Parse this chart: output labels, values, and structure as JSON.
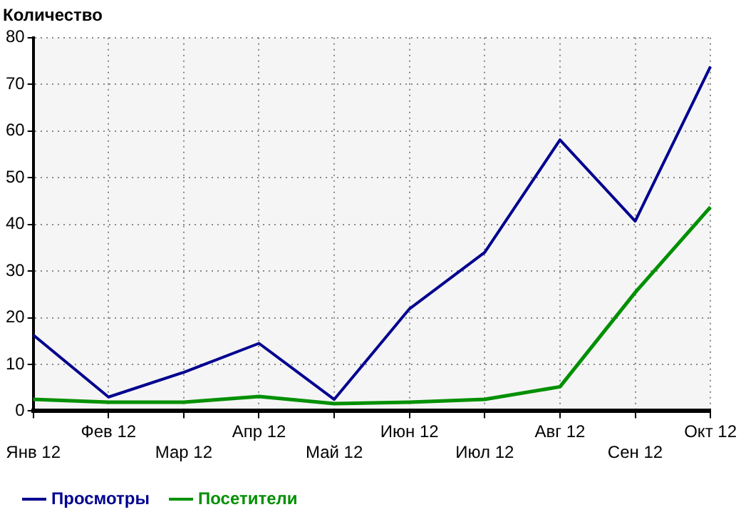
{
  "chart_data": {
    "type": "line",
    "title": "Количество",
    "categories": [
      "Янв 12",
      "Фев 12",
      "Мар 12",
      "Апр 12",
      "Май 12",
      "Июн 12",
      "Июл 12",
      "Авг 12",
      "Сен 12",
      "Окт 12"
    ],
    "series": [
      {
        "name": "Просмотры",
        "color": "#000090",
        "values": [
          16.3,
          3,
          8.3,
          14.5,
          2.5,
          21.9,
          34,
          58.1,
          40.7,
          73.8
        ]
      },
      {
        "name": "Посетители",
        "color": "#009000",
        "values": [
          2.5,
          1.9,
          1.9,
          3.1,
          1.6,
          1.9,
          2.5,
          5.2,
          25.4,
          43.7
        ]
      }
    ],
    "ylim": [
      0,
      80
    ],
    "yticks": [
      0,
      10,
      20,
      30,
      40,
      50,
      60,
      70,
      80
    ],
    "grid": true,
    "legend": "bottom left",
    "marker": "none",
    "line_style": "solid"
  }
}
